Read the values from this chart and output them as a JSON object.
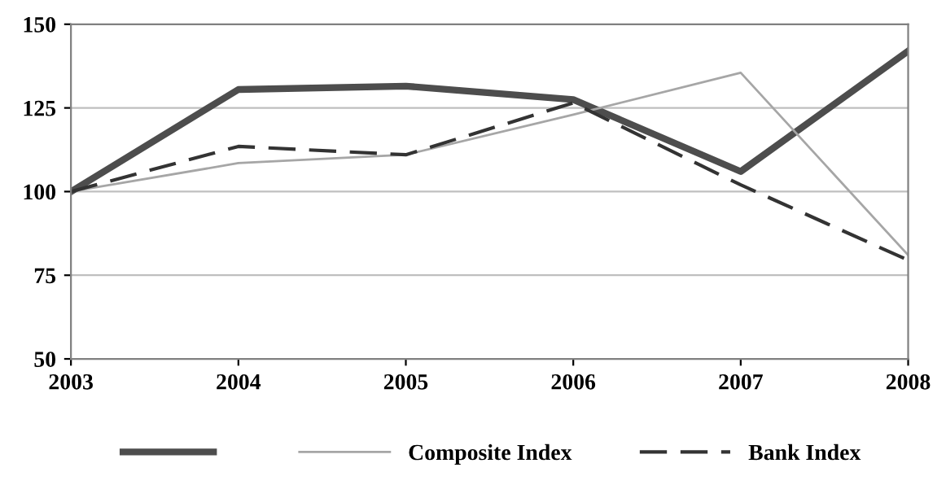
{
  "chart_data": {
    "type": "line",
    "categories": [
      "2003",
      "2004",
      "2005",
      "2006",
      "2007",
      "2008"
    ],
    "series": [
      {
        "color": "#4d4d4d",
        "line_style": "solid",
        "values": [
          100,
          130.5,
          131.5,
          127.5,
          106,
          142
        ]
      },
      {
        "name": "Composite Index",
        "color": "#a6a6a6",
        "line_style": "solid",
        "values": [
          100,
          108.5,
          111,
          123,
          135.5,
          81
        ]
      },
      {
        "name": "Bank Index",
        "color": "#333333",
        "line_style": "dashed",
        "values": [
          100,
          113.5,
          111,
          126.5,
          102,
          79.5
        ]
      }
    ],
    "ylim": [
      50,
      150
    ],
    "yticks": [
      50,
      75,
      100,
      125,
      150
    ],
    "grid": "y",
    "legend": "bottom",
    "marker": "none"
  }
}
